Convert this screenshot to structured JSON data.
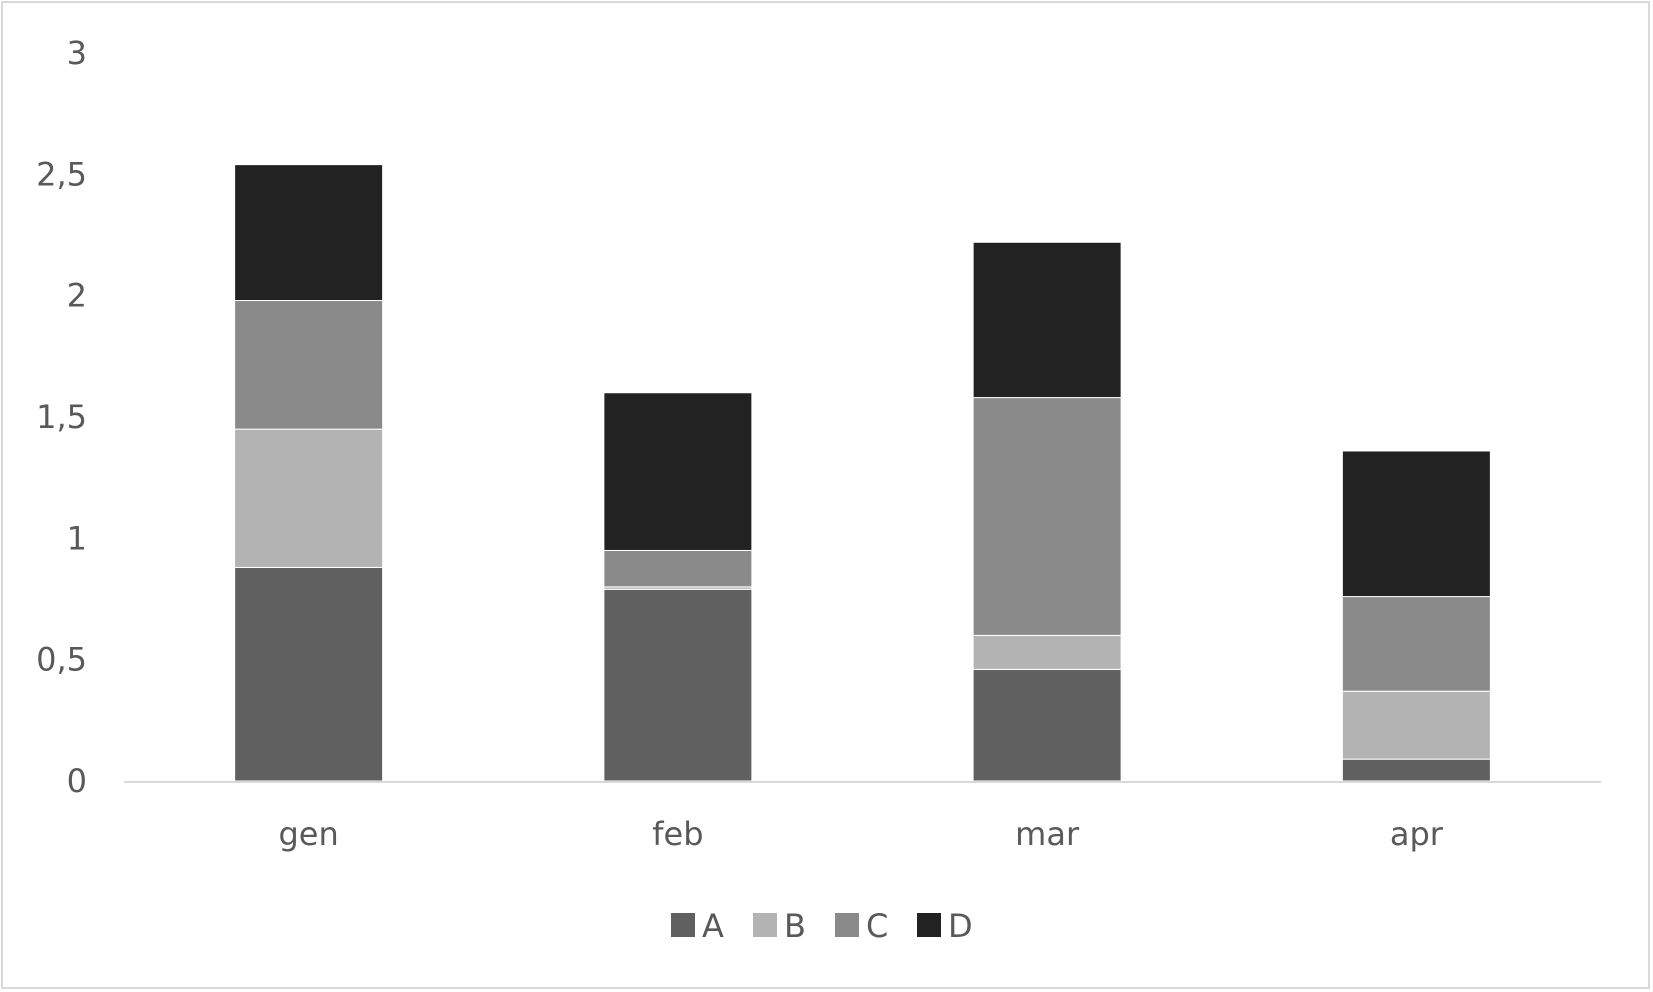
{
  "chart_data": {
    "type": "bar",
    "stacked": true,
    "title": "",
    "xlabel": "",
    "ylabel": "",
    "categories": [
      "gen",
      "feb",
      "mar",
      "apr"
    ],
    "series": [
      {
        "name": "A",
        "color": "#606060",
        "values": [
          0.88,
          0.79,
          0.46,
          0.09
        ]
      },
      {
        "name": "B",
        "color": "#b3b3b3",
        "values": [
          0.57,
          0.01,
          0.14,
          0.28
        ]
      },
      {
        "name": "C",
        "color": "#8a8a8a",
        "values": [
          0.53,
          0.15,
          0.98,
          0.39
        ]
      },
      {
        "name": "D",
        "color": "#222222",
        "values": [
          0.56,
          0.65,
          0.64,
          0.6
        ]
      }
    ],
    "ylim": [
      0,
      3
    ],
    "yticks": [
      0,
      0.5,
      1,
      1.5,
      2,
      2.5,
      3
    ],
    "ytick_labels": [
      "0",
      "0,5",
      "1",
      "1,5",
      "2",
      "2,5",
      "3"
    ],
    "grid": false,
    "legend_position": "bottom"
  }
}
